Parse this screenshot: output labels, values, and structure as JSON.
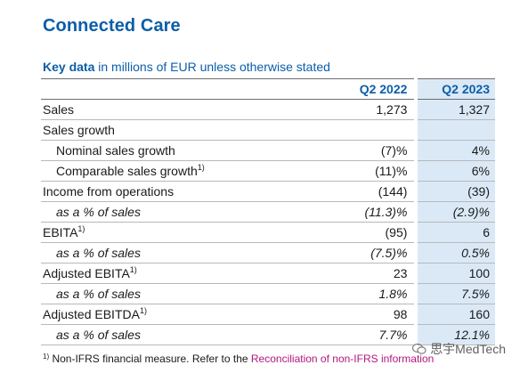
{
  "title": "Connected Care",
  "subtitle": {
    "bold": "Key data",
    "rest": " in millions of EUR unless otherwise stated"
  },
  "table": {
    "columns": [
      "Q2 2022",
      "Q2 2023"
    ],
    "rows": [
      {
        "label": "Sales",
        "sup": "",
        "indent": false,
        "italic": false,
        "q2_2022": "1,273",
        "q2_2023": "1,327"
      },
      {
        "label": "Sales growth",
        "sup": "",
        "indent": false,
        "italic": false,
        "q2_2022": "",
        "q2_2023": ""
      },
      {
        "label": "Nominal sales growth",
        "sup": "",
        "indent": true,
        "italic": false,
        "q2_2022": "(7)%",
        "q2_2023": "4%"
      },
      {
        "label": "Comparable sales growth",
        "sup": "1)",
        "indent": true,
        "italic": false,
        "q2_2022": "(11)%",
        "q2_2023": "6%"
      },
      {
        "label": "Income from operations",
        "sup": "",
        "indent": false,
        "italic": false,
        "q2_2022": "(144)",
        "q2_2023": "(39)"
      },
      {
        "label": "as a % of sales",
        "sup": "",
        "indent": true,
        "italic": true,
        "q2_2022": "(11.3)%",
        "q2_2023": "(2.9)%"
      },
      {
        "label": "EBITA",
        "sup": "1)",
        "indent": false,
        "italic": false,
        "q2_2022": "(95)",
        "q2_2023": "6"
      },
      {
        "label": "as a % of sales",
        "sup": "",
        "indent": true,
        "italic": true,
        "q2_2022": "(7.5)%",
        "q2_2023": "0.5%"
      },
      {
        "label": "Adjusted EBITA",
        "sup": "1)",
        "indent": false,
        "italic": false,
        "q2_2022": "23",
        "q2_2023": "100"
      },
      {
        "label": "as a % of sales",
        "sup": "",
        "indent": true,
        "italic": true,
        "q2_2022": "1.8%",
        "q2_2023": "7.5%"
      },
      {
        "label": "Adjusted EBITDA",
        "sup": "1)",
        "indent": false,
        "italic": false,
        "q2_2022": "98",
        "q2_2023": "160"
      },
      {
        "label": "as a % of sales",
        "sup": "",
        "indent": true,
        "italic": true,
        "q2_2022": "7.7%",
        "q2_2023": "12.1%"
      }
    ]
  },
  "footnote": {
    "marker": "1)",
    "text": " Non-IFRS financial measure. Refer to the ",
    "link": "Reconciliation of non-IFRS information"
  },
  "watermark": "思宇MedTech",
  "colors": {
    "accent": "#0b5ea8",
    "highlight_column": "#dbe9f7",
    "link": "#b0187e"
  }
}
